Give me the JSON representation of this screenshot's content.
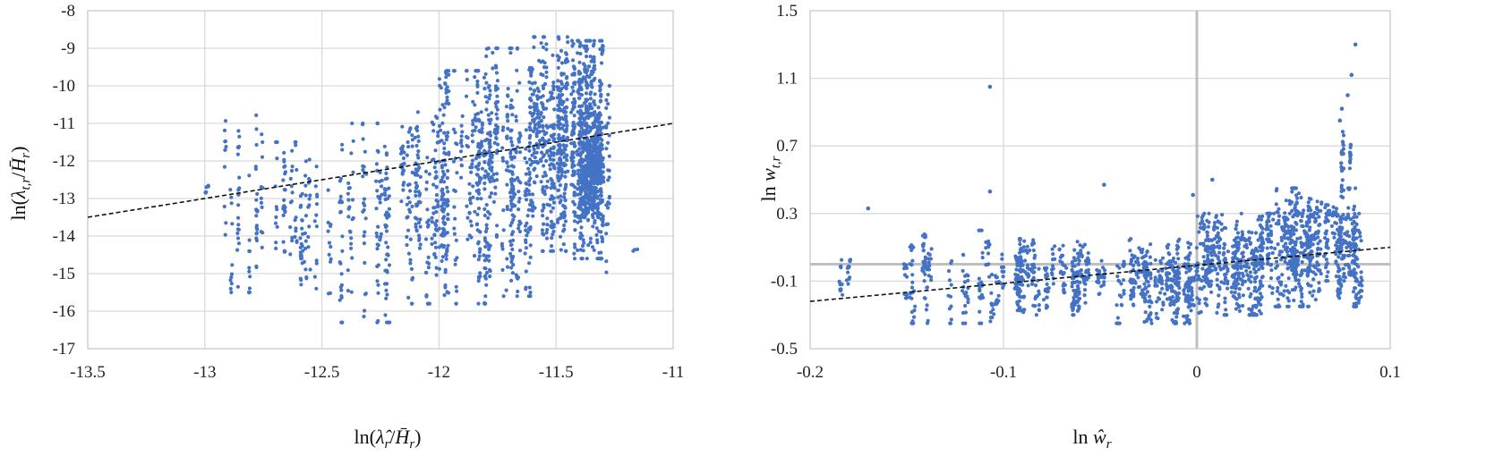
{
  "chart_data": [
    {
      "type": "scatter",
      "title": "",
      "xlabel_base": "ln",
      "xlabel_arg": "λ̂",
      "xlabel_sub": "r",
      "xlabel_den": "H̄",
      "xlabel_den_sub": "r",
      "ylabel_base": "ln",
      "ylabel_arg": "λ",
      "ylabel_sub": "t,r",
      "ylabel_den": "H̄",
      "ylabel_den_sub": "r",
      "xlim": [
        -13.5,
        -11
      ],
      "ylim": [
        -17,
        -8
      ],
      "x_ticks": [
        -13.5,
        -13,
        -12.5,
        -12,
        -11.5,
        -11
      ],
      "y_ticks": [
        -8,
        -9,
        -10,
        -11,
        -12,
        -13,
        -14,
        -15,
        -16,
        -17
      ],
      "x_tick_labels": [
        "-13.5",
        "-13",
        "-12.5",
        "-12",
        "-11.5",
        "-11"
      ],
      "y_tick_labels": [
        "-8",
        "-9",
        "-10",
        "-11",
        "-12",
        "-13",
        "-14",
        "-15",
        "-16",
        "-17"
      ],
      "grid": true,
      "trendline": {
        "x": [
          -13.5,
          -11
        ],
        "y": [
          -13.5,
          -11.0
        ]
      },
      "clusters": [
        {
          "xmin": -13.02,
          "xmax": -12.98,
          "ymin": -13.1,
          "ymax": -12.6,
          "n": 6
        },
        {
          "xmin": -12.95,
          "xmax": -12.75,
          "ymin": -15.5,
          "ymax": -10.7,
          "n": 90
        },
        {
          "xmin": -12.75,
          "xmax": -12.5,
          "ymin": -15.4,
          "ymax": -11.5,
          "n": 120
        },
        {
          "xmin": -12.5,
          "xmax": -12.2,
          "ymin": -16.3,
          "ymax": -11.0,
          "n": 170
        },
        {
          "xmin": -12.2,
          "xmax": -12.0,
          "ymin": -15.8,
          "ymax": -10.7,
          "n": 180
        },
        {
          "xmin": -12.0,
          "xmax": -11.8,
          "ymin": -15.8,
          "ymax": -9.6,
          "n": 300
        },
        {
          "xmin": -11.8,
          "xmax": -11.6,
          "ymin": -15.6,
          "ymax": -9.0,
          "n": 360
        },
        {
          "xmin": -11.6,
          "xmax": -11.45,
          "ymin": -14.4,
          "ymax": -8.7,
          "n": 420
        },
        {
          "xmin": -11.45,
          "xmax": -11.3,
          "ymin": -14.6,
          "ymax": -8.8,
          "n": 600
        },
        {
          "xmin": -11.4,
          "xmax": -11.3,
          "ymin": -13.5,
          "ymax": -11.0,
          "n": 300
        },
        {
          "xmin": -11.3,
          "xmax": -11.27,
          "ymin": -15.3,
          "ymax": -10.0,
          "n": 30
        },
        {
          "xmin": -11.18,
          "xmax": -11.15,
          "ymin": -14.5,
          "ymax": -14.3,
          "n": 3
        }
      ]
    },
    {
      "type": "scatter",
      "title": "",
      "xlabel_base": "ln",
      "xlabel_arg": "ŵ",
      "xlabel_sub": "r",
      "ylabel_base": "ln",
      "ylabel_arg": "w",
      "ylabel_sub": "t,r",
      "xlim": [
        -0.2,
        0.1
      ],
      "ylim": [
        -0.5,
        1.5
      ],
      "x_ticks": [
        -0.2,
        -0.1,
        0,
        0.1
      ],
      "y_ticks": [
        1.5,
        1.1,
        0.7,
        0.3,
        -0.1,
        -0.5
      ],
      "x_tick_labels": [
        "-0.2",
        "-0.1",
        "0",
        "0.1"
      ],
      "y_tick_labels": [
        "1.5",
        "1.1",
        "0.7",
        "0.3",
        "-0.1",
        "-0.5"
      ],
      "grid": true,
      "zero_lines": {
        "x": 0,
        "y": 0
      },
      "trendline": {
        "x": [
          -0.2,
          0.1
        ],
        "y": [
          -0.22,
          0.1
        ]
      },
      "clusters": [
        {
          "xmin": -0.2,
          "xmax": -0.15,
          "ymin": -0.2,
          "ymax": 0.05,
          "n": 40
        },
        {
          "xmin": -0.15,
          "xmax": -0.1,
          "ymin": -0.35,
          "ymax": 0.2,
          "n": 180
        },
        {
          "xmin": -0.1,
          "xmax": -0.05,
          "ymin": -0.3,
          "ymax": 0.15,
          "n": 320
        },
        {
          "xmin": -0.05,
          "xmax": 0.0,
          "ymin": -0.35,
          "ymax": 0.15,
          "n": 380
        },
        {
          "xmin": 0.0,
          "xmax": 0.04,
          "ymin": -0.3,
          "ymax": 0.3,
          "n": 500
        },
        {
          "xmin": 0.04,
          "xmax": 0.085,
          "ymin": -0.25,
          "ymax": 0.45,
          "n": 650
        },
        {
          "xmin": 0.07,
          "xmax": 0.085,
          "ymin": 0.3,
          "ymax": 0.8,
          "n": 40
        }
      ],
      "outliers": [
        {
          "x": -0.107,
          "y": 1.05
        },
        {
          "x": -0.17,
          "y": 0.33
        },
        {
          "x": -0.107,
          "y": 0.43
        },
        {
          "x": -0.048,
          "y": 0.47
        },
        {
          "x": -0.002,
          "y": 0.41
        },
        {
          "x": 0.008,
          "y": 0.5
        },
        {
          "x": 0.082,
          "y": 1.3
        },
        {
          "x": 0.08,
          "y": 1.12
        },
        {
          "x": 0.078,
          "y": 1.0
        },
        {
          "x": 0.075,
          "y": 0.92
        },
        {
          "x": 0.074,
          "y": 0.85
        }
      ]
    }
  ]
}
